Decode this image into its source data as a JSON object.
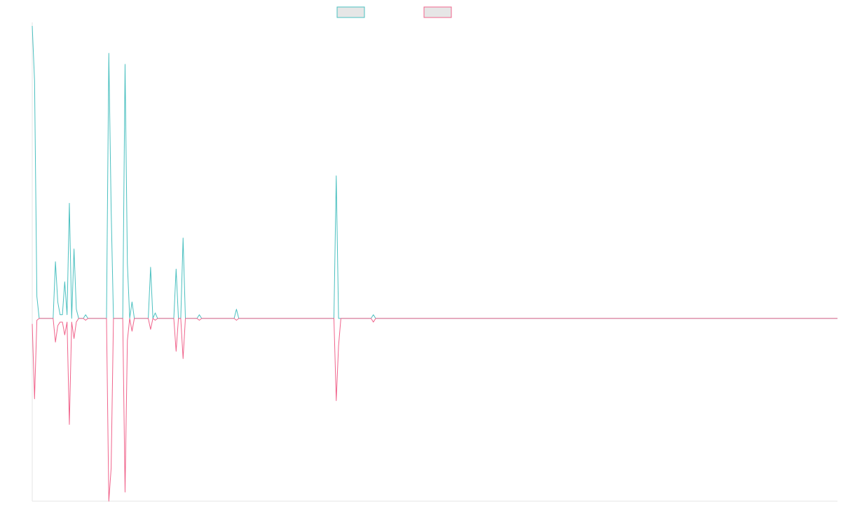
{
  "chart_data": {
    "type": "line",
    "title": "",
    "xlabel": "",
    "ylabel": "",
    "x_count": 348,
    "ylim": [
      -1,
      1.6
    ],
    "grid": false,
    "legend": "top-center",
    "series": [
      {
        "color": "#4bc0c0",
        "points": [
          [
            0,
            1.6
          ],
          [
            1,
            1.3
          ],
          [
            2,
            0.12
          ],
          [
            3,
            0.0
          ],
          [
            9,
            0.0
          ],
          [
            10,
            0.31
          ],
          [
            11,
            0.09
          ],
          [
            12,
            0.02
          ],
          [
            13,
            0.02
          ],
          [
            14,
            0.2
          ],
          [
            15,
            0.02
          ],
          [
            16,
            0.63
          ],
          [
            17,
            0.0
          ],
          [
            18,
            0.38
          ],
          [
            19,
            0.05
          ],
          [
            20,
            0.0
          ],
          [
            22,
            0.0
          ],
          [
            23,
            0.02
          ],
          [
            24,
            0.0
          ],
          [
            32,
            0.0
          ],
          [
            33,
            1.45
          ],
          [
            34,
            0.6
          ],
          [
            35,
            0.0
          ],
          [
            39,
            0.0
          ],
          [
            40,
            1.39
          ],
          [
            41,
            0.3
          ],
          [
            42,
            0.0
          ],
          [
            43,
            0.09
          ],
          [
            44,
            0.0
          ],
          [
            45,
            0.0
          ],
          [
            50,
            0.0
          ],
          [
            51,
            0.28
          ],
          [
            52,
            0.0
          ],
          [
            53,
            0.03
          ],
          [
            54,
            0.0
          ],
          [
            61,
            0.0
          ],
          [
            62,
            0.27
          ],
          [
            63,
            0.0
          ],
          [
            64,
            0.0
          ],
          [
            65,
            0.44
          ],
          [
            66,
            0.0
          ],
          [
            71,
            0.0
          ],
          [
            72,
            0.02
          ],
          [
            73,
            0.0
          ],
          [
            87,
            0.0
          ],
          [
            88,
            0.05
          ],
          [
            89,
            0.0
          ],
          [
            130,
            0.0
          ],
          [
            131,
            0.78
          ],
          [
            132,
            0.0
          ],
          [
            146,
            0.0
          ],
          [
            147,
            0.02
          ],
          [
            148,
            0.0
          ],
          [
            347,
            0.0
          ]
        ]
      },
      {
        "color": "#f0648c",
        "points": [
          [
            0,
            -0.03
          ],
          [
            1,
            -0.44
          ],
          [
            2,
            -0.01
          ],
          [
            3,
            0.0
          ],
          [
            9,
            0.0
          ],
          [
            10,
            -0.13
          ],
          [
            11,
            -0.04
          ],
          [
            12,
            -0.02
          ],
          [
            13,
            -0.02
          ],
          [
            14,
            -0.09
          ],
          [
            15,
            -0.02
          ],
          [
            16,
            -0.58
          ],
          [
            17,
            -0.02
          ],
          [
            18,
            -0.11
          ],
          [
            19,
            -0.02
          ],
          [
            20,
            0.0
          ],
          [
            22,
            0.0
          ],
          [
            23,
            -0.01
          ],
          [
            24,
            0.0
          ],
          [
            32,
            0.0
          ],
          [
            33,
            -1.0
          ],
          [
            34,
            -0.82
          ],
          [
            35,
            0.0
          ],
          [
            39,
            0.0
          ],
          [
            40,
            -0.95
          ],
          [
            41,
            -0.12
          ],
          [
            42,
            0.0
          ],
          [
            43,
            -0.07
          ],
          [
            44,
            0.0
          ],
          [
            45,
            0.0
          ],
          [
            50,
            0.0
          ],
          [
            51,
            -0.06
          ],
          [
            52,
            0.0
          ],
          [
            53,
            -0.01
          ],
          [
            54,
            0.0
          ],
          [
            61,
            0.0
          ],
          [
            62,
            -0.18
          ],
          [
            63,
            0.0
          ],
          [
            64,
            0.0
          ],
          [
            65,
            -0.22
          ],
          [
            66,
            0.0
          ],
          [
            71,
            0.0
          ],
          [
            72,
            -0.01
          ],
          [
            73,
            0.0
          ],
          [
            87,
            0.0
          ],
          [
            88,
            -0.01
          ],
          [
            89,
            0.0
          ],
          [
            130,
            0.0
          ],
          [
            131,
            -0.45
          ],
          [
            132,
            -0.15
          ],
          [
            133,
            0.0
          ],
          [
            146,
            0.0
          ],
          [
            147,
            -0.02
          ],
          [
            148,
            0.0
          ],
          [
            347,
            0.0
          ]
        ]
      }
    ]
  }
}
